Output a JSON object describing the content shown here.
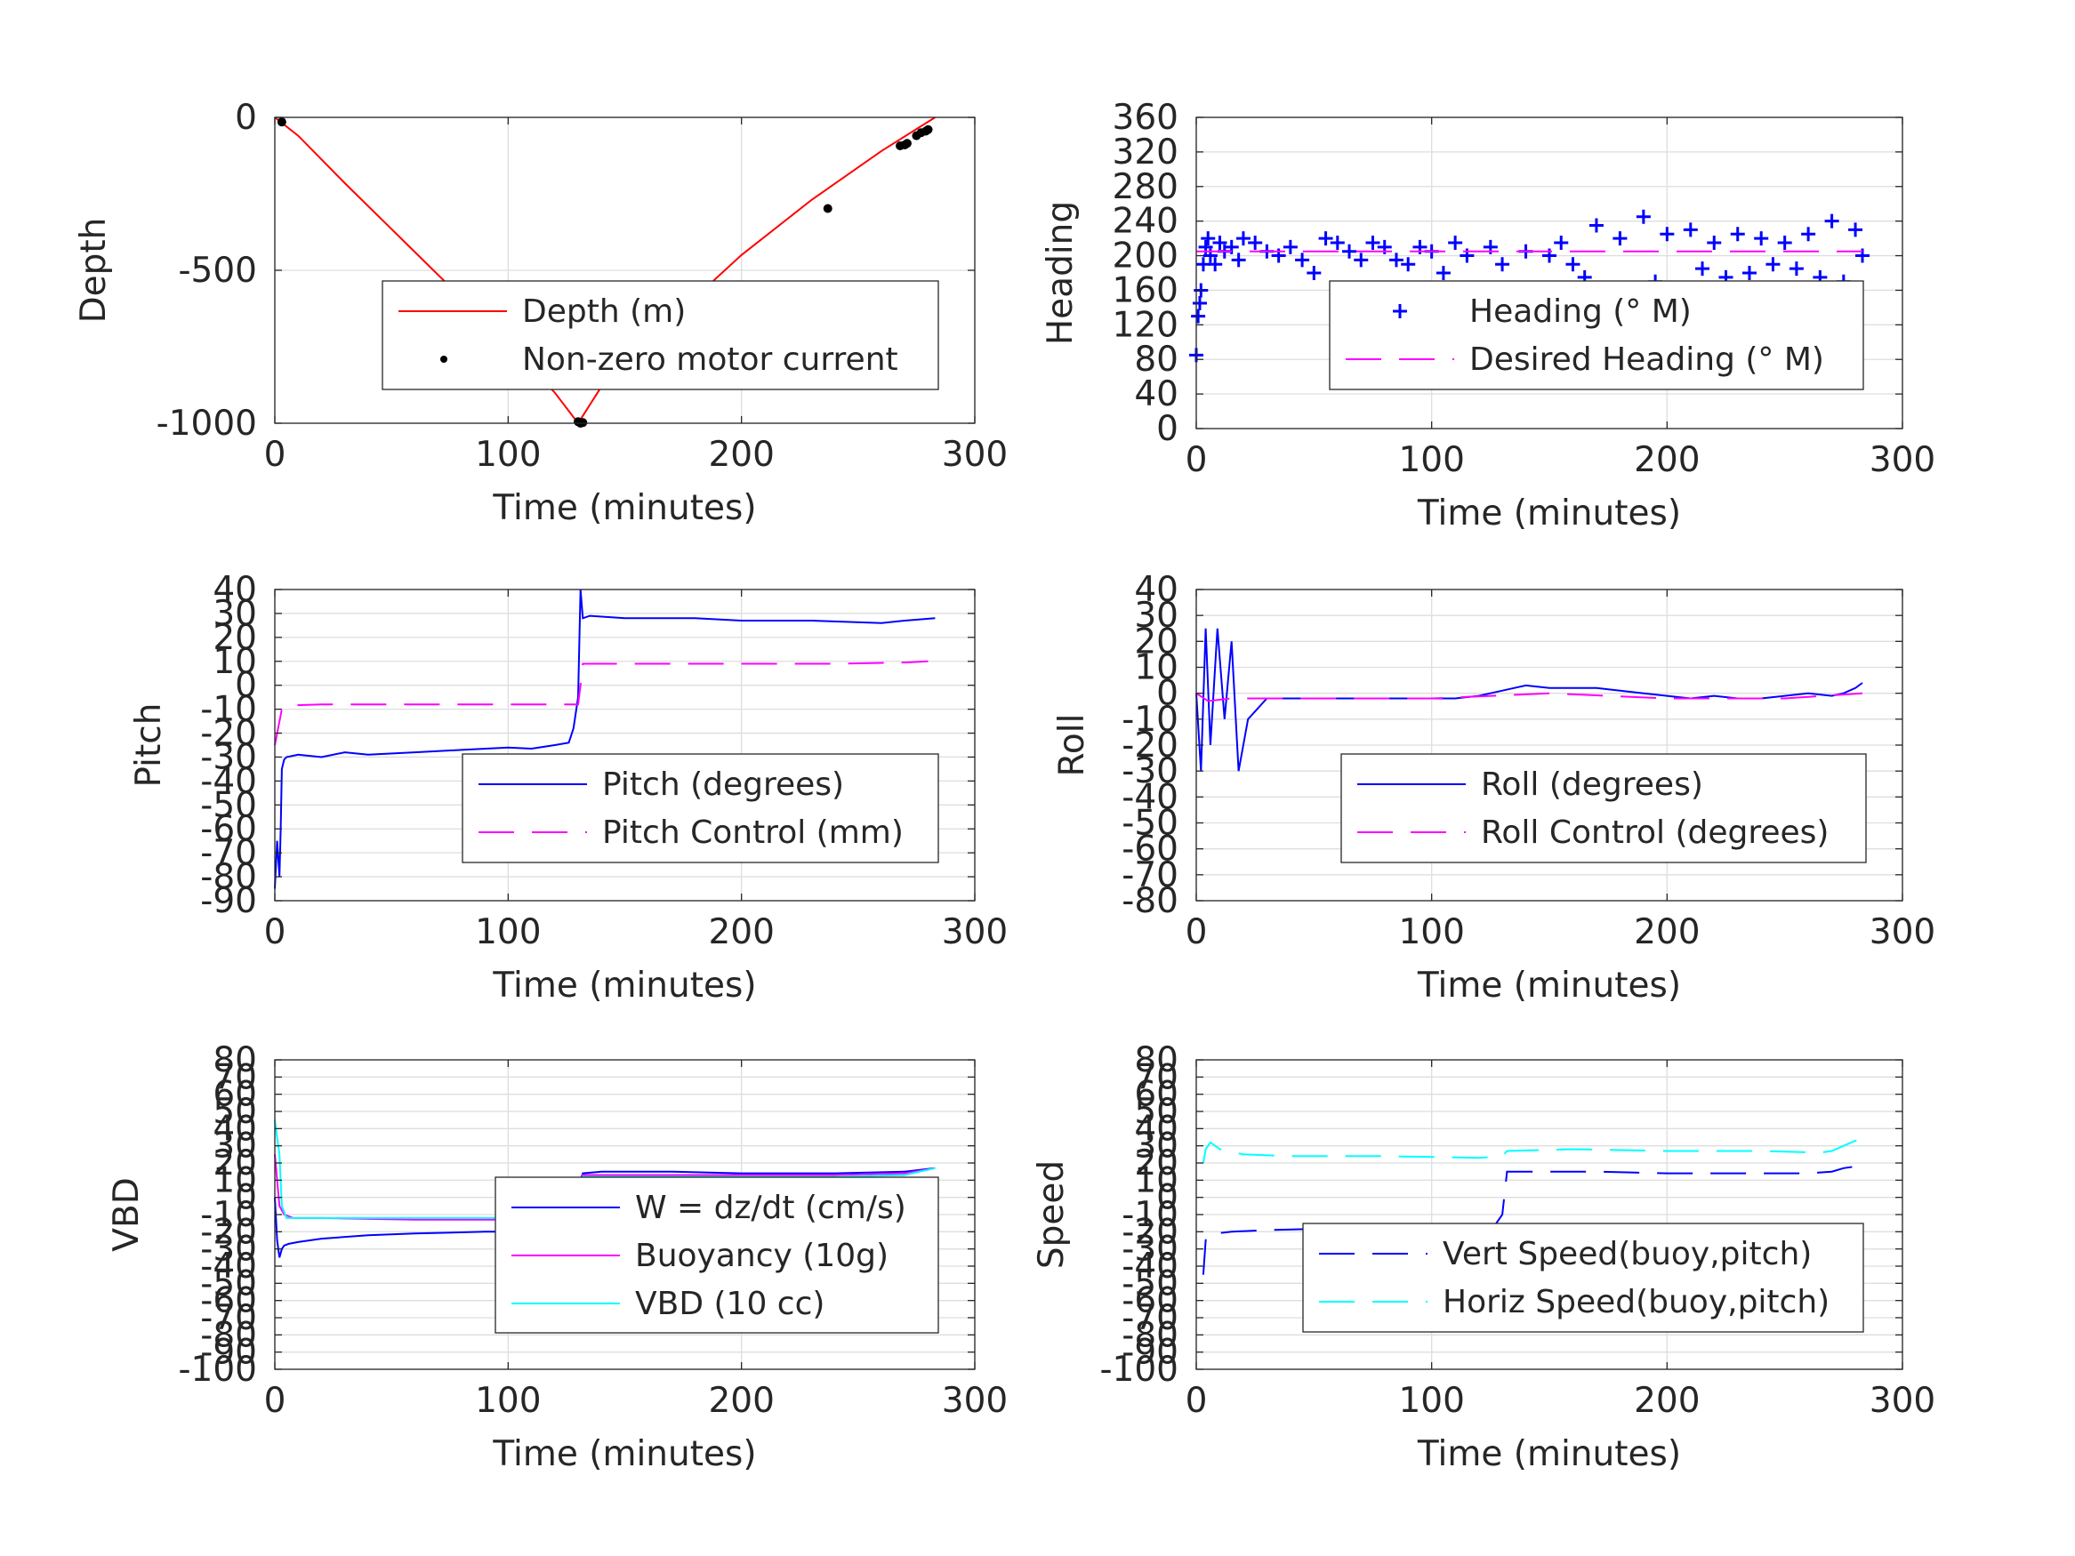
{
  "colors": {
    "depth": "#ff0000",
    "motor": "#000000",
    "heading": "#0000ff",
    "desired_heading": "#ff00ff",
    "pitch": "#0000ff",
    "pitch_control": "#ff00ff",
    "roll": "#0000ff",
    "roll_control": "#ff00ff",
    "w": "#0000ff",
    "buoyancy": "#ff00ff",
    "vbd": "#00ffff",
    "vert_speed": "#0000ff",
    "horiz_speed": "#00ffff"
  },
  "chart_data": [
    {
      "id": "depth",
      "type": "line",
      "xlabel": "Time (minutes)",
      "ylabel": "Depth",
      "xlim": [
        0,
        300
      ],
      "ylim": [
        -1000,
        0
      ],
      "xticks": [
        "0",
        "100",
        "200",
        "300"
      ],
      "yticks": [
        "0",
        "-500",
        "-1000"
      ],
      "grid": true,
      "legend_position": "center-right",
      "series": [
        {
          "name": "Depth (m)",
          "style": "line",
          "color": "#ff0000",
          "x": [
            0,
            10,
            30,
            60,
            90,
            120,
            130,
            140,
            170,
            200,
            230,
            260,
            283
          ],
          "y": [
            0,
            -60,
            -215,
            -440,
            -665,
            -900,
            -1000,
            -880,
            -660,
            -450,
            -270,
            -110,
            0
          ]
        },
        {
          "name": "Non-zero motor current",
          "style": "dots",
          "color": "#000000",
          "x": [
            3,
            130,
            131,
            132,
            237,
            268,
            270,
            271,
            275,
            277,
            279,
            280
          ],
          "y": [
            -15,
            -995,
            -1000,
            -998,
            -298,
            -93,
            -90,
            -85,
            -60,
            -50,
            -45,
            -40
          ]
        }
      ]
    },
    {
      "id": "heading",
      "type": "scatter",
      "xlabel": "Time (minutes)",
      "ylabel": "Heading",
      "xlim": [
        0,
        300
      ],
      "ylim": [
        0,
        360
      ],
      "xticks": [
        "0",
        "100",
        "200",
        "300"
      ],
      "yticks": [
        "0",
        "40",
        "80",
        "120",
        "160",
        "200",
        "240",
        "280",
        "320",
        "360"
      ],
      "grid": true,
      "legend_position": "center-right",
      "series": [
        {
          "name": "Heading (° M)",
          "style": "plus",
          "color": "#0000ff",
          "x": [
            0,
            0.8,
            1.5,
            2,
            3,
            4,
            5,
            6,
            8,
            10,
            12,
            15,
            18,
            20,
            25,
            30,
            35,
            40,
            45,
            50,
            55,
            60,
            65,
            70,
            75,
            80,
            85,
            90,
            95,
            100,
            105,
            110,
            115,
            120,
            125,
            130,
            135,
            140,
            145,
            150,
            155,
            160,
            165,
            170,
            175,
            180,
            185,
            190,
            195,
            200,
            205,
            210,
            215,
            220,
            225,
            230,
            235,
            240,
            245,
            250,
            255,
            260,
            265,
            270,
            275,
            280,
            283
          ],
          "y": [
            85,
            130,
            145,
            160,
            190,
            210,
            220,
            200,
            190,
            215,
            205,
            210,
            195,
            220,
            215,
            205,
            200,
            210,
            195,
            180,
            220,
            215,
            205,
            195,
            215,
            210,
            195,
            190,
            210,
            205,
            180,
            215,
            200,
            140,
            210,
            190,
            150,
            205,
            130,
            200,
            215,
            190,
            175,
            235,
            150,
            220,
            130,
            245,
            170,
            225,
            160,
            230,
            185,
            215,
            175,
            225,
            180,
            220,
            190,
            215,
            185,
            225,
            175,
            240,
            170,
            230,
            200
          ]
        },
        {
          "name": "Desired Heading (° M)",
          "style": "dashed",
          "color": "#ff00ff",
          "x": [
            0,
            283
          ],
          "y": [
            205,
            205
          ]
        }
      ]
    },
    {
      "id": "pitch",
      "type": "line",
      "xlabel": "Time (minutes)",
      "ylabel": "Pitch",
      "xlim": [
        0,
        300
      ],
      "ylim": [
        -90,
        40
      ],
      "xticks": [
        "0",
        "100",
        "200",
        "300"
      ],
      "yticks": [
        "40",
        "30",
        "20",
        "10",
        "0",
        "-10",
        "-20",
        "-30",
        "-40",
        "-50",
        "-60",
        "-70",
        "-80",
        "-90"
      ],
      "grid": true,
      "legend_position": "center-right",
      "series": [
        {
          "name": "Pitch (degrees)",
          "style": "solid",
          "color": "#0000ff",
          "x": [
            0,
            1,
            2,
            2.5,
            3,
            4,
            5,
            10,
            20,
            30,
            40,
            60,
            80,
            100,
            110,
            120,
            126,
            128,
            130,
            131,
            132,
            135,
            150,
            180,
            200,
            230,
            260,
            270,
            283
          ],
          "y": [
            -85,
            -65,
            -80,
            -60,
            -35,
            -31,
            -30,
            -29,
            -30,
            -28,
            -29,
            -28,
            -27,
            -26,
            -26.5,
            -25,
            -24,
            -18,
            -5,
            40,
            28,
            29,
            28,
            28,
            27,
            27,
            26,
            27,
            28
          ]
        },
        {
          "name": "Pitch Control (mm)",
          "style": "dashed",
          "color": "#ff00ff",
          "x": [
            0,
            3,
            5,
            20,
            50,
            80,
            110,
            125,
            130,
            131,
            132,
            160,
            200,
            240,
            270,
            280
          ],
          "y": [
            -25,
            -10,
            -8.5,
            -8,
            -8,
            -8,
            -8,
            -8,
            -8,
            0,
            9,
            9,
            9,
            9,
            9.5,
            10
          ]
        }
      ]
    },
    {
      "id": "roll",
      "type": "line",
      "xlabel": "Time (minutes)",
      "ylabel": "Roll",
      "xlim": [
        0,
        300
      ],
      "ylim": [
        -80,
        40
      ],
      "xticks": [
        "0",
        "100",
        "200",
        "300"
      ],
      "yticks": [
        "40",
        "30",
        "20",
        "10",
        "0",
        "-10",
        "-20",
        "-30",
        "-40",
        "-50",
        "-60",
        "-70",
        "-80"
      ],
      "grid": true,
      "legend_position": "center-right",
      "series": [
        {
          "name": "Roll (degrees)",
          "style": "solid",
          "color": "#0000ff",
          "x": [
            0,
            2,
            4,
            6,
            9,
            12,
            15,
            18,
            22,
            30,
            50,
            65,
            85,
            100,
            110,
            120,
            125,
            135,
            140,
            150,
            160,
            170,
            180,
            190,
            200,
            210,
            220,
            230,
            240,
            250,
            260,
            270,
            275,
            280,
            283
          ],
          "y": [
            0,
            -30,
            25,
            -20,
            25,
            -10,
            20,
            -30,
            -10,
            -2,
            -2,
            -2,
            -2,
            -2,
            -2,
            -1,
            0,
            2,
            3,
            2,
            2,
            2,
            1,
            0,
            -1,
            -2,
            -1,
            -2,
            -2,
            -1,
            0,
            -1,
            0,
            2,
            4
          ]
        },
        {
          "name": "Roll Control (degrees)",
          "style": "dashed",
          "color": "#ff00ff",
          "x": [
            0,
            5,
            15,
            50,
            100,
            150,
            200,
            250,
            283
          ],
          "y": [
            0,
            -3,
            -2,
            -2,
            -2,
            0,
            -2,
            -2,
            0
          ]
        }
      ]
    },
    {
      "id": "vbd",
      "type": "line",
      "xlabel": "Time (minutes)",
      "ylabel": "VBD",
      "xlim": [
        0,
        300
      ],
      "ylim": [
        -100,
        80
      ],
      "xticks": [
        "0",
        "100",
        "200",
        "300"
      ],
      "yticks": [
        "80",
        "70",
        "60",
        "50",
        "40",
        "30",
        "20",
        "10",
        "0",
        "-10",
        "-20",
        "-30",
        "-40",
        "-50",
        "-60",
        "-70",
        "-80",
        "-90",
        "-100"
      ],
      "grid": true,
      "legend_position": "center-right",
      "series": [
        {
          "name": "W = dz/dt (cm/s)",
          "style": "solid",
          "color": "#0000ff",
          "x": [
            0,
            1,
            2,
            3,
            4,
            6,
            10,
            20,
            40,
            60,
            90,
            120,
            126,
            128,
            130,
            131,
            132,
            140,
            170,
            200,
            240,
            270,
            283
          ],
          "y": [
            0,
            -25,
            -35,
            -30,
            -28,
            -27,
            -26,
            -24,
            -22,
            -21,
            -20,
            -20,
            -18,
            -15,
            -12,
            10,
            14,
            15,
            15,
            14,
            14,
            15,
            17
          ]
        },
        {
          "name": "Buoyancy (10g)",
          "style": "solid",
          "color": "#ff00ff",
          "x": [
            0,
            2,
            4,
            8,
            20,
            60,
            100,
            125,
            130,
            132,
            160,
            200,
            240,
            270,
            283
          ],
          "y": [
            25,
            -5,
            -10,
            -12,
            -12,
            -13,
            -13,
            -13,
            -5,
            13,
            13,
            13,
            13,
            14,
            17
          ]
        },
        {
          "name": "VBD (10 cc)",
          "style": "solid",
          "color": "#00ffff",
          "x": [
            0,
            2,
            3,
            5,
            10,
            30,
            60,
            100,
            125,
            130,
            132,
            160,
            200,
            240,
            270,
            283
          ],
          "y": [
            45,
            25,
            -5,
            -12,
            -12,
            -12,
            -12,
            -12,
            -12,
            -5,
            12,
            12,
            12,
            12,
            13,
            17
          ]
        }
      ]
    },
    {
      "id": "speed",
      "type": "line",
      "xlabel": "Time (minutes)",
      "ylabel": "Speed",
      "xlim": [
        0,
        300
      ],
      "ylim": [
        -100,
        80
      ],
      "xticks": [
        "0",
        "100",
        "200",
        "300"
      ],
      "yticks": [
        "80",
        "70",
        "60",
        "50",
        "40",
        "30",
        "20",
        "10",
        "0",
        "-10",
        "-20",
        "-30",
        "-40",
        "-50",
        "-60",
        "-70",
        "-80",
        "-90",
        "-100"
      ],
      "grid": true,
      "legend_position": "center-right",
      "series": [
        {
          "name": "Vert Speed(buoy,pitch)",
          "style": "dashed",
          "color": "#0000ff",
          "x": [
            3,
            4,
            5,
            8,
            15,
            30,
            60,
            90,
            120,
            127,
            130,
            132,
            140,
            170,
            200,
            240,
            260,
            270,
            275,
            280,
            283
          ],
          "y": [
            -45,
            -25,
            -22,
            -21,
            -20,
            -19,
            -18,
            -18,
            -17,
            -16,
            -10,
            15,
            15,
            15,
            14,
            14,
            14,
            15,
            17,
            18,
            18
          ]
        },
        {
          "name": "Horiz Speed(buoy,pitch)",
          "style": "dashed",
          "color": "#00ffff",
          "x": [
            3,
            4,
            6,
            10,
            20,
            40,
            80,
            120,
            130,
            132,
            160,
            200,
            240,
            265,
            270,
            275,
            280,
            283
          ],
          "y": [
            20,
            28,
            32,
            28,
            25,
            24,
            24,
            23,
            24,
            27,
            28,
            27,
            27,
            26,
            27,
            30,
            33,
            33
          ]
        }
      ]
    }
  ]
}
